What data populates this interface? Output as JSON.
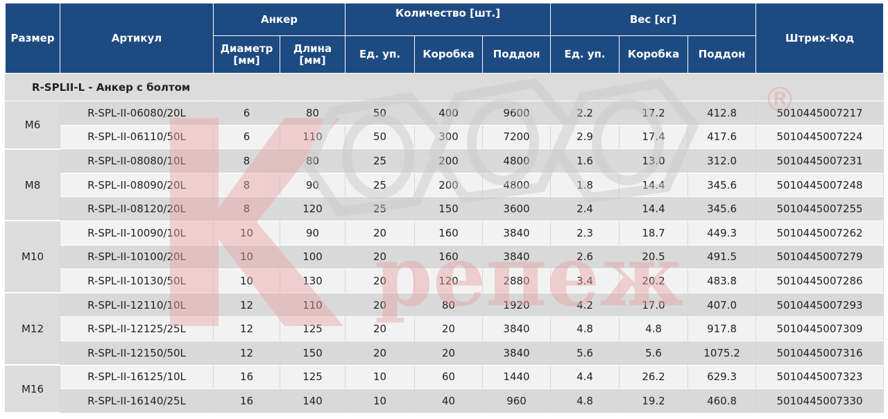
{
  "header": {
    "size": "Размер",
    "article": "Артикул",
    "anchor": "Анкер",
    "quantity": "Количество [шт.]",
    "weight": "Вес [кг]",
    "barcode": "Штрих-Код",
    "diameter": "Диаметр [мм]",
    "length": "Длина [мм]",
    "unit_pack": "Ед. уп.",
    "box": "Коробка",
    "pallet": "Поддон",
    "unit_pack_w": "Ед. уп.",
    "box_w": "Коробка",
    "pallet_w": "Поддон"
  },
  "section_title": "R-SPLII-L - Анкер с болтом",
  "watermark": {
    "letter": "К",
    "word": "репеж",
    "registered": "®",
    "colors": {
      "red": "#e8a2a2",
      "grey": "#d8d8d8"
    }
  },
  "groups": [
    {
      "size": "M6",
      "rows": [
        [
          "R-SPL-II-06080/20L",
          "6",
          "80",
          "50",
          "400",
          "9600",
          "2.2",
          "17.2",
          "412.8",
          "5010445007217"
        ],
        [
          "R-SPL-II-06110/50L",
          "6",
          "110",
          "50",
          "300",
          "7200",
          "2.9",
          "17.4",
          "417.6",
          "5010445007224"
        ]
      ]
    },
    {
      "size": "M8",
      "rows": [
        [
          "R-SPL-II-08080/10L",
          "8",
          "80",
          "25",
          "200",
          "4800",
          "1.6",
          "13.0",
          "312.0",
          "5010445007231"
        ],
        [
          "R-SPL-II-08090/20L",
          "8",
          "90",
          "25",
          "200",
          "4800",
          "1.8",
          "14.4",
          "345.6",
          "5010445007248"
        ],
        [
          "R-SPL-II-08120/20L",
          "8",
          "120",
          "25",
          "150",
          "3600",
          "2.4",
          "14.4",
          "345.6",
          "5010445007255"
        ]
      ]
    },
    {
      "size": "M10",
      "rows": [
        [
          "R-SPL-II-10090/10L",
          "10",
          "90",
          "20",
          "160",
          "3840",
          "2.3",
          "18.7",
          "449.3",
          "5010445007262"
        ],
        [
          "R-SPL-II-10100/20L",
          "10",
          "100",
          "20",
          "160",
          "3840",
          "2.6",
          "20.5",
          "491.5",
          "5010445007279"
        ],
        [
          "R-SPL-II-10130/50L",
          "10",
          "130",
          "20",
          "120",
          "2880",
          "3.4",
          "20.2",
          "483.8",
          "5010445007286"
        ]
      ]
    },
    {
      "size": "M12",
      "rows": [
        [
          "R-SPL-II-12110/10L",
          "12",
          "110",
          "20",
          "80",
          "1920",
          "4.2",
          "17.0",
          "407.0",
          "5010445007293"
        ],
        [
          "R-SPL-II-12125/25L",
          "12",
          "125",
          "20",
          "20",
          "3840",
          "4.8",
          "4.8",
          "917.8",
          "5010445007309"
        ],
        [
          "R-SPL-II-12150/50L",
          "12",
          "150",
          "20",
          "20",
          "3840",
          "5.6",
          "5.6",
          "1075.2",
          "5010445007316"
        ]
      ]
    },
    {
      "size": "M16",
      "rows": [
        [
          "R-SPL-II-16125/10L",
          "16",
          "125",
          "10",
          "60",
          "1440",
          "4.4",
          "26.2",
          "629.3",
          "5010445007323"
        ],
        [
          "R-SPL-II-16140/25L",
          "16",
          "140",
          "10",
          "40",
          "960",
          "4.8",
          "19.2",
          "460.8",
          "5010445007330"
        ]
      ]
    }
  ]
}
